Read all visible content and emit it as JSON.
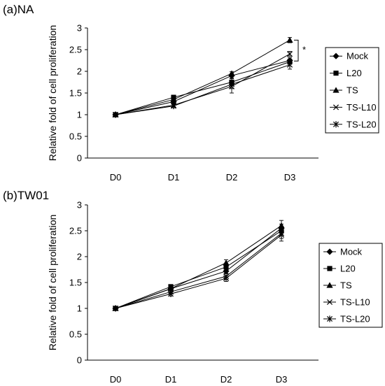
{
  "panels": [
    {
      "label": "(a)NA"
    },
    {
      "label": "(b)TW01"
    }
  ],
  "colors": {
    "line": "#000000",
    "axis": "#000000",
    "background": "#ffffff"
  },
  "chart_data": [
    {
      "type": "line",
      "title": "",
      "xlabel": "",
      "ylabel": "Relative fold of cell proliferation",
      "categories": [
        "D0",
        "D1",
        "D2",
        "D3"
      ],
      "ylim": [
        0,
        3
      ],
      "yticks": [
        0,
        0.5,
        1,
        1.5,
        2,
        2.5,
        3
      ],
      "grid": false,
      "legend_position": "right",
      "annotation": "*",
      "series": [
        {
          "name": "Mock",
          "marker": "diamond",
          "values": [
            1,
            1.3,
            1.9,
            2.25
          ],
          "errors": [
            0.02,
            0.04,
            0.05,
            0.06
          ]
        },
        {
          "name": "L20",
          "marker": "square",
          "values": [
            1,
            1.4,
            1.75,
            2.22
          ],
          "errors": [
            0.02,
            0.05,
            0.08,
            0.06
          ]
        },
        {
          "name": "TS",
          "marker": "triangle",
          "values": [
            1,
            1.35,
            1.95,
            2.72
          ],
          "errors": [
            0.02,
            0.04,
            0.04,
            0.06
          ]
        },
        {
          "name": "TS-L10",
          "marker": "x",
          "values": [
            1,
            1.22,
            1.65,
            2.4
          ],
          "errors": [
            0.02,
            0.04,
            0.15,
            0.06
          ]
        },
        {
          "name": "TS-L20",
          "marker": "star",
          "values": [
            1,
            1.2,
            1.7,
            2.15
          ],
          "errors": [
            0.02,
            0.04,
            0.1,
            0.1
          ]
        }
      ]
    },
    {
      "type": "line",
      "title": "",
      "xlabel": "",
      "ylabel": "Relative fold of cell proliferation",
      "categories": [
        "D0",
        "D1",
        "D2",
        "D3"
      ],
      "ylim": [
        0,
        3
      ],
      "yticks": [
        0,
        0.5,
        1,
        1.5,
        2,
        2.5,
        3
      ],
      "grid": false,
      "legend_position": "right",
      "series": [
        {
          "name": "Mock",
          "marker": "diamond",
          "values": [
            1,
            1.38,
            1.72,
            2.55
          ],
          "errors": [
            0.02,
            0.04,
            0.05,
            0.08
          ]
        },
        {
          "name": "L20",
          "marker": "square",
          "values": [
            1,
            1.42,
            1.8,
            2.5
          ],
          "errors": [
            0.02,
            0.04,
            0.06,
            0.08
          ]
        },
        {
          "name": "TS",
          "marker": "triangle",
          "values": [
            1,
            1.38,
            1.88,
            2.6
          ],
          "errors": [
            0.02,
            0.04,
            0.06,
            0.1
          ]
        },
        {
          "name": "TS-L10",
          "marker": "x",
          "values": [
            1,
            1.32,
            1.62,
            2.45
          ],
          "errors": [
            0.02,
            0.04,
            0.06,
            0.1
          ]
        },
        {
          "name": "TS-L20",
          "marker": "star",
          "values": [
            1,
            1.28,
            1.58,
            2.42
          ],
          "errors": [
            0.02,
            0.04,
            0.06,
            0.12
          ]
        }
      ]
    }
  ]
}
